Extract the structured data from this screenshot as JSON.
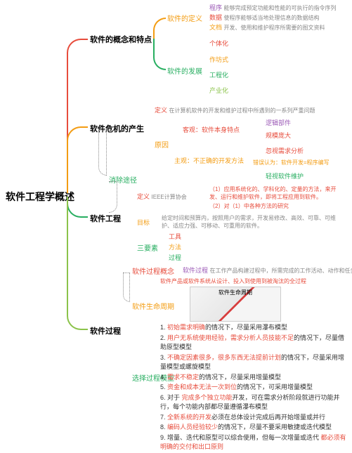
{
  "root": "软件工程学概述",
  "colors": {
    "red": "#e74c3c",
    "orange": "#f39c12",
    "green": "#27ae60",
    "olive": "#8bc34a",
    "purple": "#9b59b6",
    "blue": "#3498db",
    "darkred": "#c0392b",
    "gray": "#888888",
    "black": "#333333"
  },
  "branches": {
    "b1": {
      "label": "软件的概念和特点",
      "color": "#e74c3c",
      "sub": {
        "s1": {
          "label": "软件的定义",
          "color": "#f39c12",
          "items": [
            {
              "k": "程序",
              "v": "能够完成预定功能和性能的可执行的指令序列",
              "c": "#9b59b6"
            },
            {
              "k": "数据",
              "v": "使程序能够适当地处理信息的数据结构",
              "c": "#e74c3c"
            },
            {
              "k": "文档",
              "v": "开发、使用和维护程序所需要的图文资料",
              "c": "#f39c12"
            }
          ]
        },
        "s2": {
          "label": "软件的发展",
          "color": "#27ae60",
          "items": [
            {
              "k": "个体化",
              "c": "#e74c3c"
            },
            {
              "k": "作坊式",
              "c": "#f39c12"
            },
            {
              "k": "工程化",
              "c": "#27ae60"
            },
            {
              "k": "产业化",
              "c": "#8bc34a"
            }
          ]
        }
      }
    },
    "b2": {
      "label": "软件危机的产生",
      "color": "#f39c12",
      "sub": {
        "s1": {
          "label": "定义",
          "color": "#e74c3c",
          "desc": "在计算机软件的开发和维护过程中所遇到的一系列严重问题"
        },
        "s2": {
          "label": "原因",
          "color": "#f39c12",
          "groups": [
            {
              "label": "客观：软件本身特点",
              "c": "#e74c3c",
              "items": [
                {
                  "k": "逻辑部件",
                  "c": "#9b59b6"
                },
                {
                  "k": "规模庞大",
                  "c": "#e74c3c"
                }
              ]
            },
            {
              "label": "主观：不正确的开发方法",
              "c": "#f39c12",
              "items": [
                {
                  "k": "忽视需求分析",
                  "c": "#e74c3c"
                },
                {
                  "k": "错误认为：软件开发=程序编写",
                  "c": "#f39c12"
                },
                {
                  "k": "轻视软件维护",
                  "c": "#27ae60"
                }
              ]
            }
          ]
        },
        "s3": {
          "label": "消除途径",
          "color": "#27ae60",
          "dotted": true
        }
      }
    },
    "b3": {
      "label": "软件工程",
      "color": "#27ae60",
      "sub": {
        "s1": {
          "label": "定义",
          "color": "#e74c3c",
          "tag": "IEEE计算协会",
          "lines": [
            "（1）应用系统化的、学科化的、定量的方法，来开发、运行和维护软件，即将工程应用到软件。",
            "（2）对（1）中各种方法的研究"
          ]
        },
        "s2": {
          "label": "目标",
          "color": "#f39c12",
          "desc": "给定时间和预算内，按照用户的需求，开发易修改、高效、可靠、可维护、适应力强、可移动、可重用的软件。"
        },
        "s3": {
          "label": "三要素",
          "color": "#27ae60",
          "items": [
            {
              "k": "工具",
              "c": "#e74c3c"
            },
            {
              "k": "方法",
              "c": "#f39c12"
            },
            {
              "k": "过程",
              "c": "#27ae60"
            }
          ]
        }
      }
    },
    "b4": {
      "label": "软件过程",
      "color": "#8bc34a",
      "sub": {
        "s1": {
          "label": "软件过程概念",
          "color": "#e74c3c",
          "items": [
            {
              "k": "软件过程",
              "v": "在工作产品构建过程中，所需完成的工作活动、动作和任务的集合",
              "c": "#9b59b6"
            },
            {
              "k": "",
              "v": "软件产品或软件系统从设计、投入到使用到被淘汰的全过程",
              "c": "#e74c3c"
            }
          ]
        },
        "s2": {
          "label": "软件生命周期",
          "color": "#f39c12",
          "img": "软件生命周期"
        },
        "s3": {
          "label": "选择过程模型",
          "color": "#27ae60"
        }
      }
    }
  },
  "model_list": [
    {
      "n": "1.",
      "red": "初始需求明确",
      "rest": "的情况下，尽量采用瀑布模型"
    },
    {
      "n": "2.",
      "red": "用户无系统使用经验，需求分析人员技能不足",
      "rest": "的情况下，尽量借助原型模型"
    },
    {
      "n": "3.",
      "red": "不确定因素很多，很多东西无法提前计划",
      "rest": "的情况下，尽量采用增量模型或螺旋模型"
    },
    {
      "n": "4.",
      "red": "需求不稳定",
      "rest": "的情况下，尽量采用增量模型"
    },
    {
      "n": "5.",
      "red": "资金和成本无法一次到位",
      "rest": "的情况下，可采用增量模型"
    },
    {
      "n": "6. 对于",
      "red": "完成多个独立功能",
      "rest": "开发，可在需求分析阶段就进行功能并行，每个功能内部都尽量遵循瀑布模型"
    },
    {
      "n": "7.",
      "red": "全新系统的开发",
      "rest": "必须在总体设计完成后再开始增量或并行"
    },
    {
      "n": "8.",
      "red": "编码人员经验较少",
      "rest": "的情况下，尽量不要采用敏捷或迭代模型"
    },
    {
      "n": "9. 增量、迭代和原型可以综合使用，但每一次增量或迭代",
      "red": "都必须有明确的交付和出口原则",
      "rest": ""
    }
  ]
}
